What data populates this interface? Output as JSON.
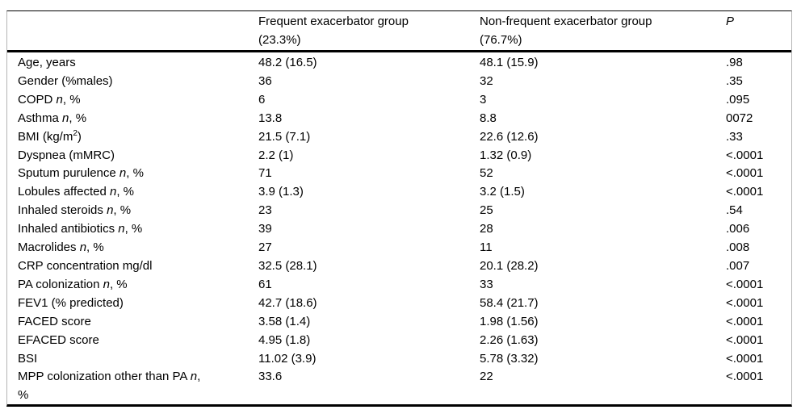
{
  "colors": {
    "rule": "#000000",
    "frame_side": "#b5b5b5",
    "text": "#000000",
    "background": "#ffffff"
  },
  "table": {
    "header": {
      "group1_line1": "Frequent exacerbator group",
      "group1_line2": "(23.3%)",
      "group2_line1": "Non-frequent exacerbator group",
      "group2_line2": "(76.7%)",
      "p_label": "P"
    },
    "rows": [
      {
        "label_pre": "Age, years",
        "v1": "48.2 (16.5)",
        "v2": "48.1 (15.9)",
        "p": ".98"
      },
      {
        "label_pre": "Gender (%males)",
        "v1": "36",
        "v2": "32",
        "p": ".35"
      },
      {
        "label_pre": "COPD ",
        "label_italic": "n",
        "label_post": ", %",
        "v1": "6",
        "v2": "3",
        "p": ".095"
      },
      {
        "label_pre": "Asthma ",
        "label_italic": "n",
        "label_post": ", %",
        "v1": "13.8",
        "v2": "8.8",
        "p": "0072"
      },
      {
        "label_pre": "BMI (kg/m",
        "label_sup": "2",
        "label_end": ")",
        "v1": "21.5 (7.1)",
        "v2": "22.6 (12.6)",
        "p": ".33"
      },
      {
        "label_pre": "Dyspnea (mMRC)",
        "v1": "2.2 (1)",
        "v2": "1.32 (0.9)",
        "p": "<.0001"
      },
      {
        "label_pre": "Sputum purulence ",
        "label_italic": "n",
        "label_post": ", %",
        "v1": "71",
        "v2": "52",
        "p": "<.0001"
      },
      {
        "label_pre": "Lobules affected ",
        "label_italic": "n",
        "label_post": ", %",
        "v1": "3.9 (1.3)",
        "v2": "3.2 (1.5)",
        "p": "<.0001"
      },
      {
        "label_pre": "Inhaled steroids ",
        "label_italic": "n",
        "label_post": ", %",
        "v1": "23",
        "v2": "25",
        "p": ".54"
      },
      {
        "label_pre": "Inhaled antibiotics ",
        "label_italic": "n",
        "label_post": ", %",
        "v1": "39",
        "v2": "28",
        "p": ".006"
      },
      {
        "label_pre": "Macrolides ",
        "label_italic": "n",
        "label_post": ", %",
        "v1": "27",
        "v2": "11",
        "p": ".008"
      },
      {
        "label_pre": "CRP concentration mg/dl",
        "v1": "32.5 (28.1)",
        "v2": "20.1 (28.2)",
        "p": ".007"
      },
      {
        "label_pre": "PA colonization ",
        "label_italic": "n",
        "label_post": ", %",
        "v1": "61",
        "v2": "33",
        "p": "<.0001"
      },
      {
        "label_pre": "FEV1 (% predicted)",
        "v1": "42.7 (18.6)",
        "v2": "58.4 (21.7)",
        "p": "<.0001"
      },
      {
        "label_pre": "FACED score",
        "v1": "3.58 (1.4)",
        "v2": "1.98 (1.56)",
        "p": "<.0001"
      },
      {
        "label_pre": "EFACED score",
        "v1": "4.95 (1.8)",
        "v2": "2.26 (1.63)",
        "p": "<.0001"
      },
      {
        "label_pre": "BSI",
        "v1": "11.02 (3.9)",
        "v2": "5.78 (3.32)",
        "p": "<.0001"
      },
      {
        "label_pre": "MPP colonization other than PA ",
        "label_italic": "n",
        "label_post": ",",
        "label_line2": "%",
        "v1": "33.6",
        "v2": "22",
        "p": "<.0001"
      }
    ]
  }
}
